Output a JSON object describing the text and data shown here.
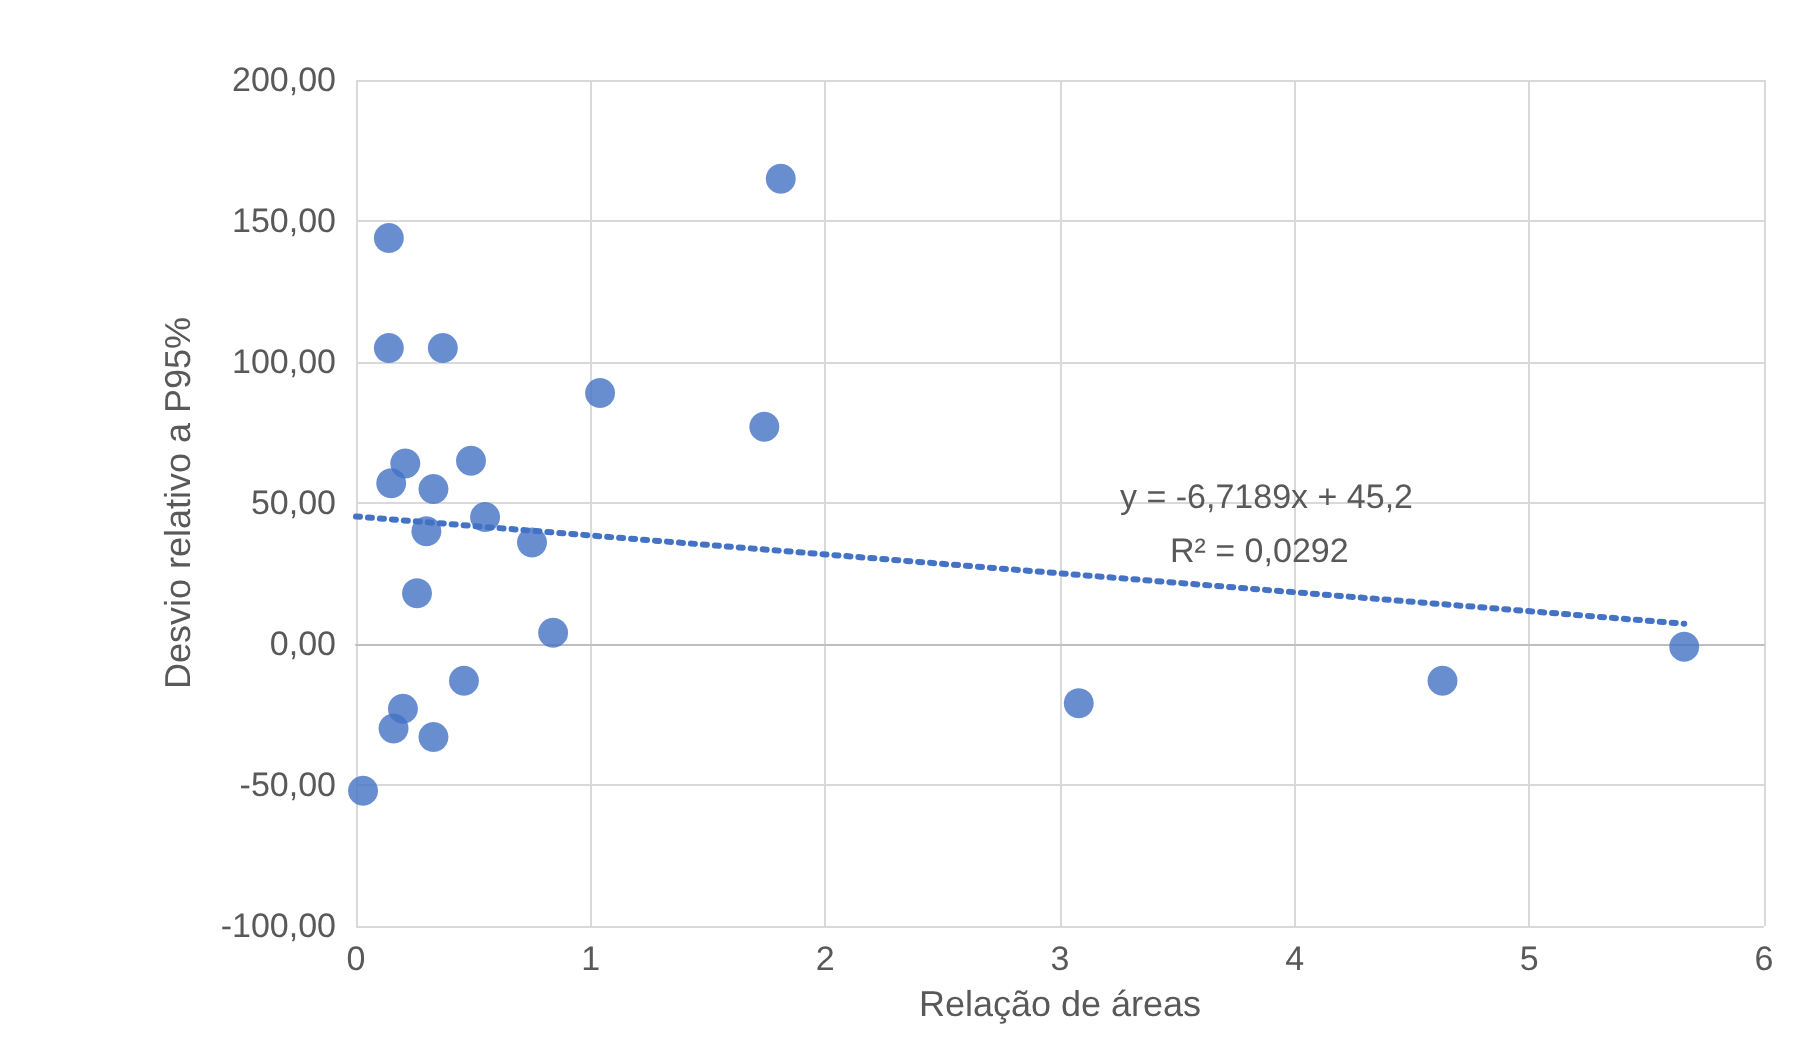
{
  "chart_data": {
    "type": "scatter",
    "xlabel": "Relação de áreas",
    "ylabel": "Desvio relativo a P95%",
    "xlim": [
      0,
      6
    ],
    "xticks": [
      0,
      1,
      2,
      3,
      4,
      5,
      6
    ],
    "ylim": [
      -100,
      200
    ],
    "yticks": [
      {
        "value": -100,
        "label": "-100,00"
      },
      {
        "value": -50,
        "label": "-50,00"
      },
      {
        "value": 0,
        "label": "0,00"
      },
      {
        "value": 50,
        "label": "50,00"
      },
      {
        "value": 100,
        "label": "100,00"
      },
      {
        "value": 150,
        "label": "150,00"
      },
      {
        "value": 200,
        "label": "200,00"
      }
    ],
    "grid": true,
    "marker": "circle",
    "series": [
      {
        "color": "#4472c4",
        "x": [
          0.14,
          0.14,
          0.37,
          0.15,
          0.21,
          0.49,
          0.33,
          0.3,
          0.55,
          0.75,
          0.26,
          0.84,
          0.46,
          0.2,
          0.16,
          0.33,
          0.03,
          1.04,
          1.74,
          1.81,
          3.08,
          4.63,
          5.66
        ],
        "values": [
          144,
          105,
          105,
          57,
          64,
          65,
          55,
          40,
          45,
          36,
          18,
          4,
          -13,
          -23,
          -30,
          -33,
          -52,
          89,
          77,
          165,
          -21,
          -13,
          -1
        ]
      },
      {
        "type": "line",
        "color": "#4472c4",
        "line_style": "dotted",
        "marker": "none",
        "x": [
          0,
          5.66
        ],
        "values": [
          45.2,
          7.2
        ]
      }
    ],
    "annotations": [
      "y = -6,7189x + 45,2",
      "R² = 0,0292"
    ]
  }
}
